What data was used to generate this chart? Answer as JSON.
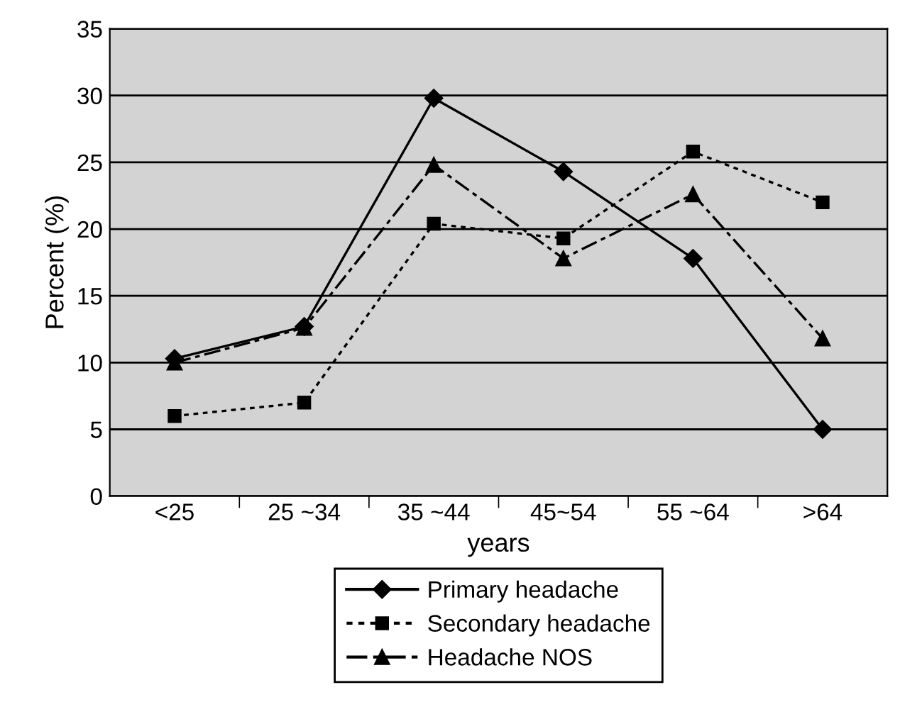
{
  "chart_data": {
    "type": "line",
    "xlabel": "years",
    "ylabel": "Percent (%)",
    "categories": [
      "<25",
      "25 ~34",
      "35 ~44",
      "45~54",
      "55 ~64",
      ">64"
    ],
    "series": [
      {
        "name": "Primary headache",
        "color": "#000000",
        "marker": "diamond",
        "line_style": "solid",
        "values": [
          10.3,
          12.7,
          29.8,
          24.3,
          17.8,
          5.0
        ]
      },
      {
        "name": "Secondary headache",
        "color": "#000000",
        "marker": "square",
        "line_style": "dotted",
        "values": [
          6.0,
          7.0,
          20.4,
          19.3,
          25.8,
          22.0
        ]
      },
      {
        "name": "Headache NOS",
        "color": "#000000",
        "marker": "triangle",
        "line_style": "dashdot",
        "values": [
          10.0,
          12.6,
          24.8,
          17.8,
          22.6,
          11.8
        ]
      }
    ],
    "ylim": [
      0,
      35
    ],
    "yticks": [
      0,
      5,
      10,
      15,
      20,
      25,
      30,
      35
    ],
    "grid": "y",
    "legend": "bottom"
  }
}
